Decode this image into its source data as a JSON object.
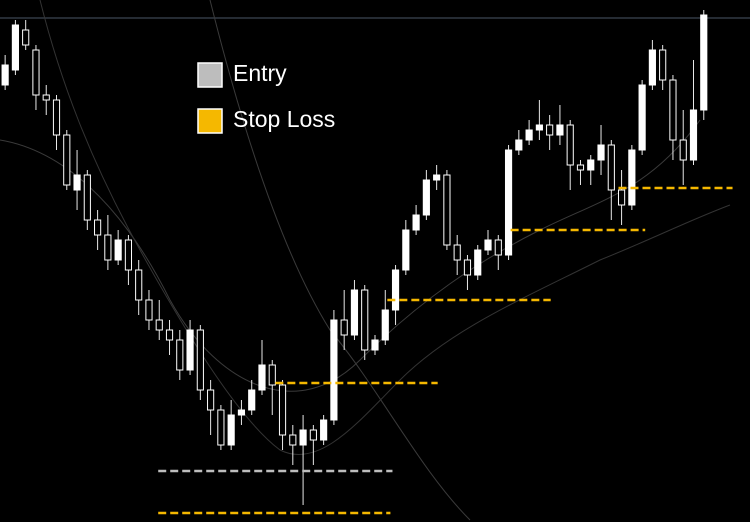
{
  "chart_data": {
    "type": "candlestick",
    "xlim": [
      -0.5,
      72.5
    ],
    "ylim": [
      0,
      522
    ],
    "open": [
      437,
      452,
      492,
      472,
      427,
      422,
      387,
      332,
      347,
      302,
      287,
      262,
      282,
      252,
      222,
      202,
      192,
      182,
      152,
      192,
      132,
      112,
      77,
      107,
      112,
      132,
      157,
      137,
      87,
      77,
      92,
      82,
      102,
      202,
      187,
      232,
      172,
      182,
      212,
      252,
      292,
      307,
      342,
      347,
      277,
      262,
      247,
      272,
      282,
      267,
      372,
      382,
      392,
      397,
      387,
      397,
      357,
      352,
      362,
      377,
      332,
      317,
      372,
      437,
      472,
      442,
      382,
      362,
      412
    ],
    "high": [
      467,
      502,
      502,
      477,
      437,
      427,
      392,
      372,
      352,
      312,
      307,
      292,
      287,
      262,
      232,
      222,
      202,
      192,
      202,
      197,
      142,
      117,
      122,
      122,
      142,
      182,
      162,
      142,
      97,
      107,
      97,
      107,
      212,
      232,
      242,
      237,
      187,
      232,
      257,
      302,
      317,
      352,
      357,
      352,
      287,
      267,
      277,
      292,
      287,
      377,
      392,
      402,
      422,
      407,
      417,
      402,
      362,
      367,
      397,
      382,
      352,
      377,
      442,
      482,
      477,
      447,
      412,
      462,
      512
    ],
    "low": [
      432,
      447,
      472,
      412,
      407,
      372,
      332,
      312,
      292,
      272,
      252,
      257,
      237,
      207,
      192,
      182,
      167,
      142,
      147,
      122,
      87,
      72,
      72,
      97,
      107,
      127,
      107,
      72,
      57,
      17,
      57,
      77,
      97,
      172,
      182,
      162,
      167,
      177,
      197,
      247,
      287,
      302,
      332,
      272,
      247,
      232,
      242,
      267,
      252,
      262,
      367,
      377,
      382,
      372,
      377,
      332,
      337,
      337,
      347,
      302,
      297,
      312,
      367,
      432,
      432,
      362,
      337,
      357,
      402
    ],
    "close": [
      457,
      497,
      477,
      427,
      422,
      387,
      337,
      347,
      302,
      287,
      262,
      282,
      252,
      222,
      202,
      192,
      182,
      152,
      192,
      132,
      112,
      77,
      107,
      112,
      132,
      157,
      137,
      87,
      77,
      92,
      82,
      102,
      202,
      187,
      232,
      172,
      182,
      212,
      252,
      292,
      307,
      342,
      347,
      277,
      262,
      247,
      272,
      282,
      267,
      372,
      382,
      392,
      397,
      387,
      397,
      357,
      352,
      362,
      377,
      332,
      317,
      372,
      437,
      472,
      442,
      382,
      362,
      412,
      507
    ],
    "series": [
      {
        "name": "Entry",
        "color": "#bdbdbd",
        "levels": [
          {
            "value": 51,
            "from": 14.9,
            "to": 37.7
          }
        ]
      },
      {
        "name": "Stop Loss",
        "color": "#f5b800",
        "levels": [
          {
            "value": 9,
            "from": 14.9,
            "to": 37.5
          },
          {
            "value": 139,
            "from": 26.3,
            "to": 42.1
          },
          {
            "value": 222,
            "from": 37.2,
            "to": 53.1
          },
          {
            "value": 292,
            "from": 49.2,
            "to": 62.3
          },
          {
            "value": 334,
            "from": 59.7,
            "to": 70.8
          }
        ]
      }
    ]
  }
}
